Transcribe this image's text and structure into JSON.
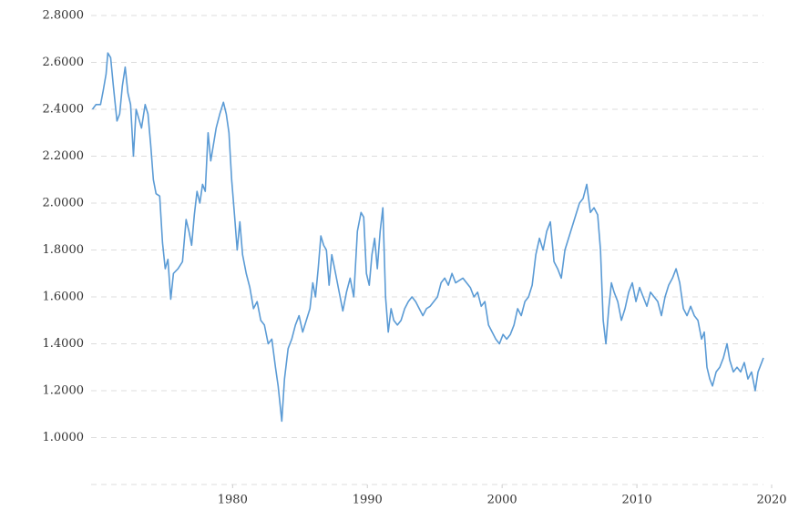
{
  "chart_data": {
    "type": "line",
    "color": "#5b9bd5",
    "grid": true,
    "xlim": [
      1969.5,
      2020
    ],
    "ylim": [
      0.8,
      2.8
    ],
    "xticks": [
      1980,
      1990,
      2000,
      2010,
      2020
    ],
    "yticks": [
      {
        "value": 1.0,
        "label": "1.0000"
      },
      {
        "value": 1.2,
        "label": "1.2000"
      },
      {
        "value": 1.4,
        "label": "1.4000"
      },
      {
        "value": 1.6,
        "label": "1.6000"
      },
      {
        "value": 1.8,
        "label": "1.8000"
      },
      {
        "value": 2.0,
        "label": "2.0000"
      },
      {
        "value": 2.2,
        "label": "2.2000"
      },
      {
        "value": 2.4,
        "label": "2.4000"
      },
      {
        "value": 2.6,
        "label": "2.6000"
      },
      {
        "value": 2.8,
        "label": "2.8000"
      }
    ],
    "x": [
      1969.6,
      1969.86,
      1970.2,
      1970.4,
      1970.61,
      1970.74,
      1970.95,
      1971.15,
      1971.42,
      1971.62,
      1971.82,
      1972.03,
      1972.23,
      1972.43,
      1972.64,
      1972.84,
      1973.04,
      1973.24,
      1973.51,
      1973.72,
      1973.92,
      1974.12,
      1974.32,
      1974.59,
      1974.8,
      1975.0,
      1975.2,
      1975.41,
      1975.61,
      1975.95,
      1976.28,
      1976.55,
      1976.76,
      1976.96,
      1977.16,
      1977.36,
      1977.57,
      1977.77,
      1977.97,
      1978.18,
      1978.38,
      1978.58,
      1978.78,
      1979.05,
      1979.32,
      1979.53,
      1979.73,
      1979.93,
      1980.14,
      1980.34,
      1980.54,
      1980.74,
      1981.01,
      1981.28,
      1981.55,
      1981.82,
      1982.09,
      1982.36,
      1982.64,
      1982.91,
      1983.18,
      1983.38,
      1983.65,
      1983.85,
      1984.12,
      1984.39,
      1984.66,
      1984.93,
      1985.2,
      1985.47,
      1985.74,
      1985.95,
      1986.15,
      1986.35,
      1986.55,
      1986.76,
      1986.96,
      1987.16,
      1987.36,
      1987.64,
      1987.91,
      1988.18,
      1988.45,
      1988.72,
      1988.99,
      1989.26,
      1989.53,
      1989.73,
      1989.93,
      1990.14,
      1990.34,
      1990.54,
      1990.74,
      1990.95,
      1991.15,
      1991.35,
      1991.55,
      1991.76,
      1991.96,
      1992.23,
      1992.5,
      1992.77,
      1993.04,
      1993.31,
      1993.58,
      1993.85,
      1994.12,
      1994.39,
      1994.66,
      1994.93,
      1995.2,
      1995.47,
      1995.74,
      1996.01,
      1996.28,
      1996.55,
      1996.82,
      1997.09,
      1997.36,
      1997.64,
      1997.91,
      1998.18,
      1998.45,
      1998.72,
      1998.99,
      1999.26,
      1999.53,
      1999.8,
      2000.07,
      2000.34,
      2000.61,
      2000.88,
      2001.15,
      2001.42,
      2001.69,
      2001.96,
      2002.23,
      2002.5,
      2002.77,
      2003.04,
      2003.31,
      2003.58,
      2003.85,
      2004.12,
      2004.39,
      2004.66,
      2004.93,
      2005.2,
      2005.47,
      2005.74,
      2006.01,
      2006.28,
      2006.55,
      2006.82,
      2007.09,
      2007.3,
      2007.5,
      2007.7,
      2007.91,
      2008.11,
      2008.31,
      2008.58,
      2008.85,
      2009.12,
      2009.39,
      2009.66,
      2009.93,
      2010.2,
      2010.47,
      2010.74,
      2011.01,
      2011.28,
      2011.55,
      2011.82,
      2012.09,
      2012.36,
      2012.64,
      2012.91,
      2013.18,
      2013.45,
      2013.72,
      2013.99,
      2014.26,
      2014.53,
      2014.8,
      2015.0,
      2015.2,
      2015.41,
      2015.61,
      2015.88,
      2016.15,
      2016.42,
      2016.69,
      2016.89,
      2017.16,
      2017.43,
      2017.7,
      2017.97,
      2018.24,
      2018.51,
      2018.78,
      2018.99,
      2019.26,
      2019.39
    ],
    "values": [
      2.4,
      2.42,
      2.42,
      2.48,
      2.55,
      2.64,
      2.62,
      2.5,
      2.35,
      2.38,
      2.5,
      2.58,
      2.47,
      2.42,
      2.2,
      2.4,
      2.36,
      2.32,
      2.42,
      2.38,
      2.25,
      2.1,
      2.04,
      2.03,
      1.83,
      1.72,
      1.76,
      1.59,
      1.7,
      1.72,
      1.75,
      1.93,
      1.88,
      1.82,
      1.95,
      2.05,
      2.0,
      2.08,
      2.05,
      2.3,
      2.18,
      2.25,
      2.32,
      2.38,
      2.43,
      2.38,
      2.3,
      2.1,
      1.95,
      1.8,
      1.92,
      1.78,
      1.7,
      1.64,
      1.55,
      1.58,
      1.5,
      1.48,
      1.4,
      1.42,
      1.3,
      1.22,
      1.07,
      1.25,
      1.38,
      1.42,
      1.48,
      1.52,
      1.45,
      1.5,
      1.55,
      1.66,
      1.6,
      1.72,
      1.86,
      1.82,
      1.8,
      1.65,
      1.78,
      1.7,
      1.62,
      1.54,
      1.62,
      1.68,
      1.6,
      1.88,
      1.96,
      1.94,
      1.7,
      1.65,
      1.78,
      1.85,
      1.72,
      1.88,
      1.98,
      1.6,
      1.45,
      1.55,
      1.5,
      1.48,
      1.5,
      1.55,
      1.58,
      1.6,
      1.58,
      1.55,
      1.52,
      1.55,
      1.56,
      1.58,
      1.6,
      1.66,
      1.68,
      1.65,
      1.7,
      1.66,
      1.67,
      1.68,
      1.66,
      1.64,
      1.6,
      1.62,
      1.56,
      1.58,
      1.48,
      1.45,
      1.42,
      1.4,
      1.44,
      1.42,
      1.44,
      1.48,
      1.55,
      1.52,
      1.58,
      1.6,
      1.65,
      1.78,
      1.85,
      1.8,
      1.88,
      1.92,
      1.75,
      1.72,
      1.68,
      1.8,
      1.85,
      1.9,
      1.95,
      2.0,
      2.02,
      2.08,
      1.96,
      1.98,
      1.95,
      1.8,
      1.5,
      1.4,
      1.55,
      1.66,
      1.62,
      1.58,
      1.5,
      1.55,
      1.62,
      1.66,
      1.58,
      1.64,
      1.6,
      1.56,
      1.62,
      1.6,
      1.58,
      1.52,
      1.6,
      1.65,
      1.68,
      1.72,
      1.66,
      1.55,
      1.52,
      1.56,
      1.52,
      1.5,
      1.42,
      1.45,
      1.3,
      1.25,
      1.22,
      1.28,
      1.3,
      1.34,
      1.4,
      1.33,
      1.28,
      1.3,
      1.28,
      1.32,
      1.25,
      1.28,
      1.2,
      1.28,
      1.32,
      1.34
    ]
  }
}
